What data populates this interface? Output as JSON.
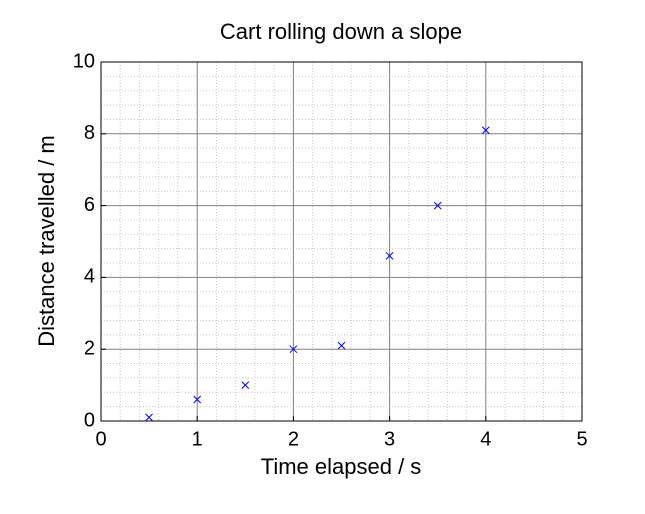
{
  "chart_data": {
    "type": "scatter",
    "title": "Cart rolling down a slope",
    "x_label": "Time elapsed / s",
    "y_label": "Distance travelled / m",
    "series": [
      {
        "x": [
          0.5,
          1,
          1.5,
          2,
          2.5,
          3,
          3.5,
          4
        ],
        "values": [
          0.1,
          0.6,
          1.0,
          2.0,
          2.1,
          4.6,
          6.0,
          8.1
        ],
        "color": "#0000ff",
        "marker": "x"
      }
    ],
    "xlim": [
      0,
      5
    ],
    "xticks": [
      0,
      1,
      2,
      3,
      4,
      5
    ],
    "ylim": [
      0,
      10
    ],
    "yticks": [
      0,
      2,
      4,
      6,
      8,
      10
    ],
    "grid": true,
    "minor_grid": true
  }
}
